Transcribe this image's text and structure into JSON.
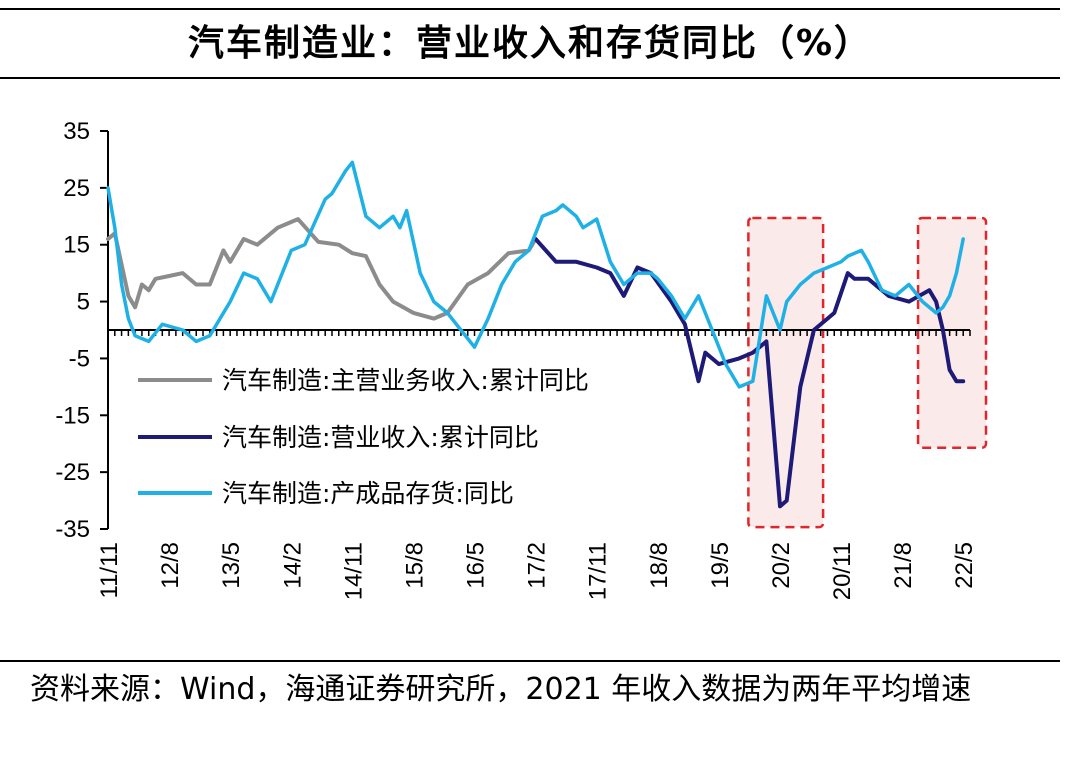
{
  "title": "汽车制造业：营业收入和存货同比（%）",
  "source": "资料来源：Wind，海通证券研究所，2021 年收入数据为两年平均增速",
  "colors": {
    "series_grey": "#8c8c8c",
    "series_navy": "#1d1a78",
    "series_cyan": "#1fb1e6",
    "highlight_border": "#e0262a",
    "highlight_fill": "#fbeaea"
  },
  "chart_data": {
    "type": "line",
    "x_unit": "month",
    "x_tick_labels": [
      "11/11",
      "12/8",
      "13/5",
      "14/2",
      "14/11",
      "15/8",
      "16/5",
      "17/2",
      "17/11",
      "18/8",
      "19/5",
      "20/2",
      "20/11",
      "21/8",
      "22/5"
    ],
    "ylim": [
      -35,
      35
    ],
    "y_ticks": [
      35,
      25,
      15,
      5,
      -5,
      -15,
      -25,
      -35
    ],
    "grid": false,
    "legend_position": "lower-left",
    "highlight_ranges": [
      [
        "2019-12",
        "2020-06"
      ],
      [
        "2022-01",
        "2022-06"
      ]
    ],
    "series": [
      {
        "name": "汽车制造:主营业务收入:累计同比",
        "points": [
          [
            "2011-11",
            16
          ],
          [
            "2011-12",
            17
          ],
          [
            "2012-02",
            6
          ],
          [
            "2012-03",
            4
          ],
          [
            "2012-04",
            8
          ],
          [
            "2012-05",
            7
          ],
          [
            "2012-06",
            9
          ],
          [
            "2012-08",
            9.5
          ],
          [
            "2012-10",
            10
          ],
          [
            "2012-12",
            8
          ],
          [
            "2013-02",
            8
          ],
          [
            "2013-04",
            14
          ],
          [
            "2013-05",
            12
          ],
          [
            "2013-07",
            16
          ],
          [
            "2013-09",
            15
          ],
          [
            "2013-12",
            18
          ],
          [
            "2014-03",
            19.5
          ],
          [
            "2014-06",
            15.5
          ],
          [
            "2014-09",
            15
          ],
          [
            "2014-11",
            13.5
          ],
          [
            "2015-01",
            13
          ],
          [
            "2015-03",
            8
          ],
          [
            "2015-05",
            5
          ],
          [
            "2015-08",
            3
          ],
          [
            "2015-11",
            2
          ],
          [
            "2016-01",
            3
          ],
          [
            "2016-04",
            8
          ],
          [
            "2016-07",
            10
          ],
          [
            "2016-10",
            13.5
          ],
          [
            "2017-01",
            14
          ],
          [
            "2017-02",
            16
          ]
        ]
      },
      {
        "name": "汽车制造:营业收入:累计同比",
        "points": [
          [
            "2017-02",
            16
          ],
          [
            "2017-05",
            12
          ],
          [
            "2017-08",
            12
          ],
          [
            "2017-11",
            11
          ],
          [
            "2018-01",
            10
          ],
          [
            "2018-03",
            6
          ],
          [
            "2018-05",
            11
          ],
          [
            "2018-07",
            10
          ],
          [
            "2018-10",
            5
          ],
          [
            "2018-12",
            1
          ],
          [
            "2019-02",
            -9
          ],
          [
            "2019-03",
            -4
          ],
          [
            "2019-05",
            -6
          ],
          [
            "2019-08",
            -5
          ],
          [
            "2019-10",
            -4
          ],
          [
            "2019-12",
            -2
          ],
          [
            "2020-02",
            -31
          ],
          [
            "2020-03",
            -30
          ],
          [
            "2020-04",
            -20
          ],
          [
            "2020-05",
            -10
          ],
          [
            "2020-07",
            0
          ],
          [
            "2020-09",
            2
          ],
          [
            "2020-10",
            3
          ],
          [
            "2020-12",
            10
          ],
          [
            "2021-01",
            9
          ],
          [
            "2021-03",
            9
          ],
          [
            "2021-06",
            6
          ],
          [
            "2021-09",
            5
          ],
          [
            "2021-12",
            7
          ],
          [
            "2022-01",
            5
          ],
          [
            "2022-02",
            0
          ],
          [
            "2022-03",
            -7
          ],
          [
            "2022-04",
            -9
          ],
          [
            "2022-05",
            -9
          ]
        ]
      },
      {
        "name": "汽车制造:产成品存货:同比",
        "points": [
          [
            "2011-11",
            25
          ],
          [
            "2011-12",
            18
          ],
          [
            "2012-01",
            8
          ],
          [
            "2012-02",
            2
          ],
          [
            "2012-03",
            -1
          ],
          [
            "2012-05",
            -2
          ],
          [
            "2012-07",
            1
          ],
          [
            "2012-10",
            0
          ],
          [
            "2012-12",
            -2
          ],
          [
            "2013-02",
            -1
          ],
          [
            "2013-05",
            5
          ],
          [
            "2013-07",
            10
          ],
          [
            "2013-09",
            9
          ],
          [
            "2013-11",
            5
          ],
          [
            "2014-02",
            14
          ],
          [
            "2014-04",
            15
          ],
          [
            "2014-07",
            23
          ],
          [
            "2014-08",
            24
          ],
          [
            "2014-10",
            28
          ],
          [
            "2014-11",
            29.5
          ],
          [
            "2015-01",
            20
          ],
          [
            "2015-03",
            18
          ],
          [
            "2015-05",
            20
          ],
          [
            "2015-06",
            18
          ],
          [
            "2015-07",
            21
          ],
          [
            "2015-09",
            10
          ],
          [
            "2015-11",
            5
          ],
          [
            "2016-01",
            3
          ],
          [
            "2016-03",
            0
          ],
          [
            "2016-05",
            -3
          ],
          [
            "2016-07",
            2
          ],
          [
            "2016-09",
            8
          ],
          [
            "2016-11",
            12
          ],
          [
            "2017-01",
            14
          ],
          [
            "2017-03",
            20
          ],
          [
            "2017-05",
            21
          ],
          [
            "2017-06",
            22
          ],
          [
            "2017-08",
            20
          ],
          [
            "2017-09",
            18
          ],
          [
            "2017-11",
            19.5
          ],
          [
            "2018-01",
            12
          ],
          [
            "2018-03",
            8
          ],
          [
            "2018-05",
            10
          ],
          [
            "2018-07",
            10
          ],
          [
            "2018-08",
            9
          ],
          [
            "2018-10",
            6
          ],
          [
            "2018-12",
            2
          ],
          [
            "2019-02",
            6
          ],
          [
            "2019-04",
            0
          ],
          [
            "2019-06",
            -6
          ],
          [
            "2019-08",
            -10
          ],
          [
            "2019-10",
            -9
          ],
          [
            "2019-12",
            6
          ],
          [
            "2020-02",
            0
          ],
          [
            "2020-03",
            5
          ],
          [
            "2020-05",
            8
          ],
          [
            "2020-07",
            10
          ],
          [
            "2020-09",
            11
          ],
          [
            "2020-11",
            12
          ],
          [
            "2020-12",
            13
          ],
          [
            "2021-02",
            14
          ],
          [
            "2021-03",
            12
          ],
          [
            "2021-05",
            7
          ],
          [
            "2021-07",
            6
          ],
          [
            "2021-09",
            8
          ],
          [
            "2021-11",
            5
          ],
          [
            "2022-01",
            3
          ],
          [
            "2022-02",
            4
          ],
          [
            "2022-03",
            6
          ],
          [
            "2022-04",
            10
          ],
          [
            "2022-05",
            16
          ]
        ]
      }
    ]
  }
}
